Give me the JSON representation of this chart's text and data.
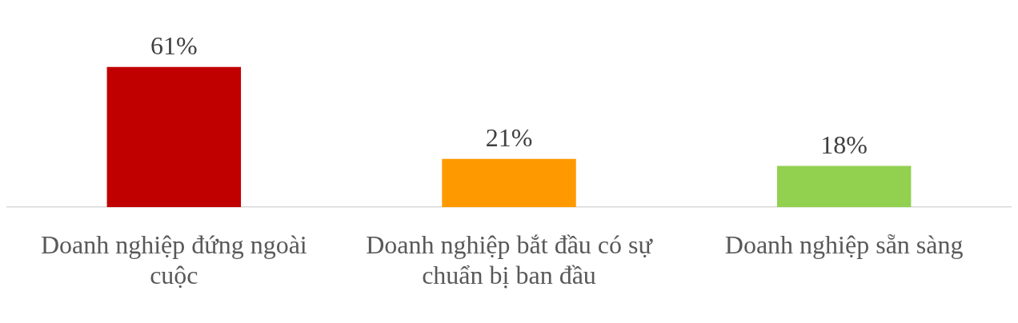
{
  "chart_data": {
    "type": "bar",
    "categories": [
      "Doanh nghiệp đứng ngoài cuộc",
      "Doanh nghiệp bắt đầu có sự chuẩn bị ban đầu",
      "Doanh nghiệp sẵn sàng"
    ],
    "values": [
      61,
      21,
      18
    ],
    "colors": [
      "#c00000",
      "#ff9900",
      "#92d050"
    ],
    "value_labels": [
      "61%",
      "21%",
      "18%"
    ]
  }
}
